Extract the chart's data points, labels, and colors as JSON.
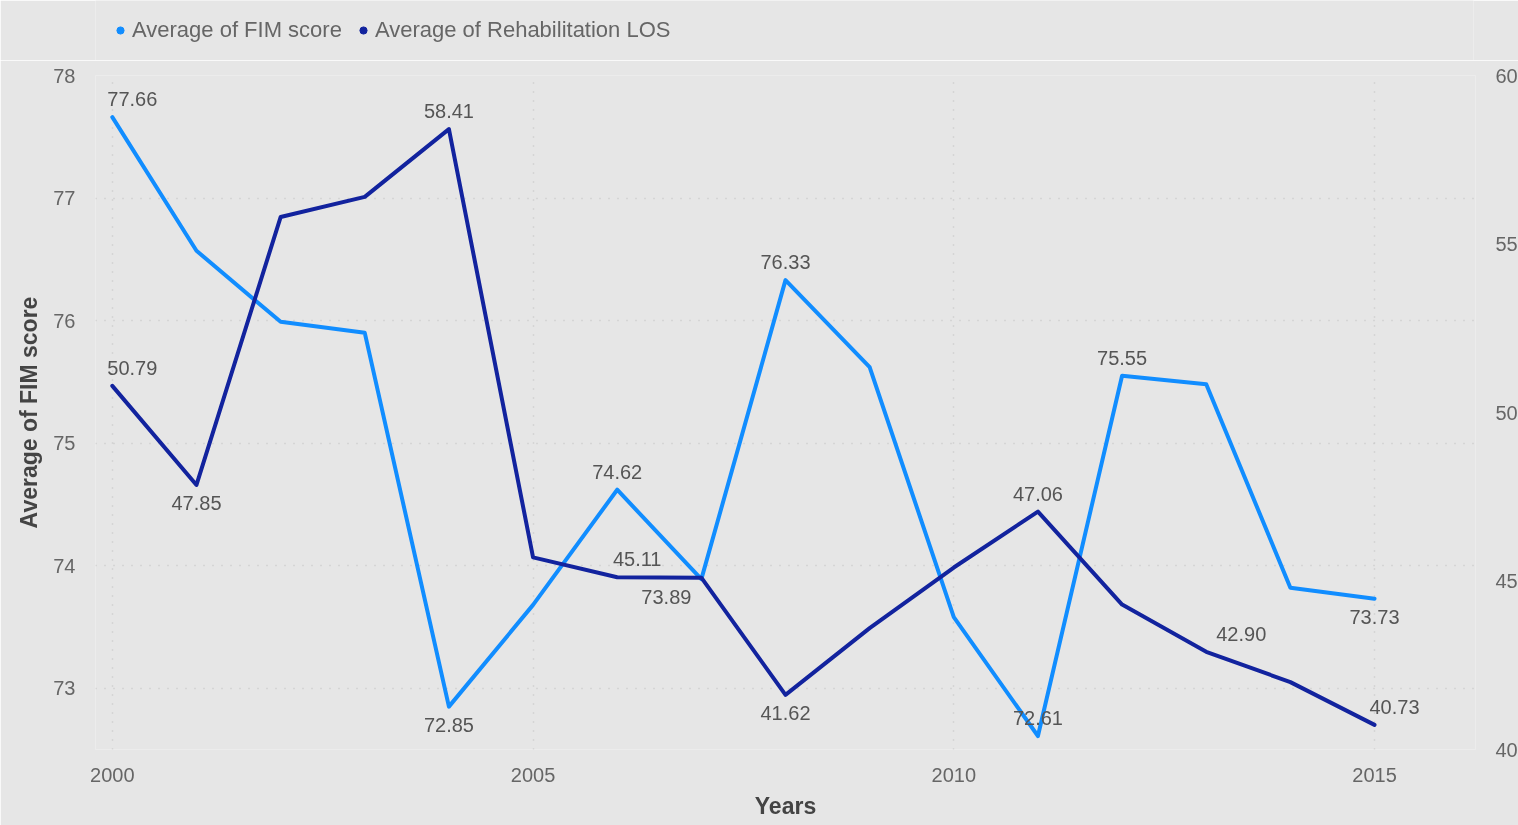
{
  "chart_data": {
    "type": "line",
    "xlabel": "Years",
    "ylabel": "Average of FIM score",
    "x": [
      2000,
      2001,
      2002,
      2003,
      2004,
      2005,
      2006,
      2007,
      2008,
      2009,
      2010,
      2011,
      2012,
      2013,
      2014,
      2015
    ],
    "xlim": [
      1999.8,
      2016.2
    ],
    "xticks": [
      2000,
      2005,
      2010,
      2015
    ],
    "ylim": [
      72.5,
      78
    ],
    "yticks": [
      73,
      74,
      75,
      76,
      77,
      78
    ],
    "y2lim": [
      40,
      60
    ],
    "y2ticks": [
      40,
      45,
      50,
      55,
      60
    ],
    "grid": true,
    "legend": "top left",
    "line_style": "solid",
    "series": [
      {
        "name": "Average of FIM score",
        "color": "#118dff",
        "values": [
          77.66,
          76.57,
          75.99,
          75.9,
          72.85,
          73.68,
          74.62,
          73.89,
          76.33,
          75.62,
          73.58,
          72.61,
          75.55,
          75.48,
          73.82,
          73.73
        ],
        "value_labels": [
          "77.66",
          null,
          null,
          null,
          "72.85",
          null,
          "74.62",
          "73.89",
          "76.33",
          null,
          null,
          "72.61",
          "75.55",
          null,
          null,
          "73.73"
        ]
      },
      {
        "name": "Average of Rehabilitation LOS",
        "color": "#12239e",
        "axis": "y2",
        "values": [
          50.79,
          47.85,
          55.8,
          56.4,
          58.41,
          45.7,
          45.11,
          45.1,
          41.62,
          43.6,
          45.4,
          47.06,
          44.3,
          42.9,
          42.0,
          40.73
        ],
        "value_labels": [
          "50.79",
          "47.85",
          null,
          null,
          "58.41",
          null,
          "45.11",
          null,
          "41.62",
          null,
          null,
          "47.06",
          null,
          "42.90",
          null,
          "40.73"
        ]
      }
    ]
  }
}
